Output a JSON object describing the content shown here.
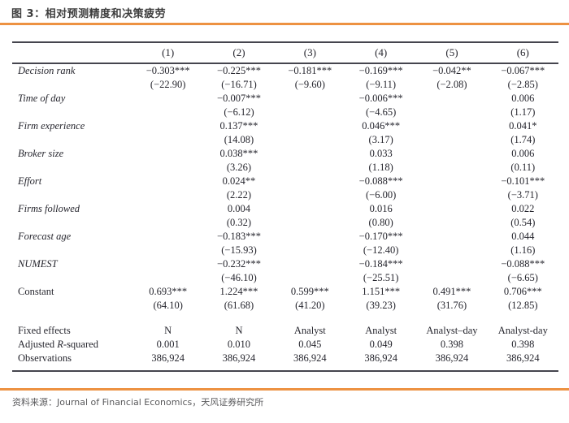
{
  "title": "图 3：相对预测精度和决策疲劳",
  "source": {
    "prefix": "资料来源：",
    "text": "Journal of Financial Economics，天风证券研究所"
  },
  "colors": {
    "accent_orange": "#ED9242",
    "rule_dark": "#45454e",
    "table_text": "#26262e",
    "muted_gray": "#5a5a5c"
  },
  "table": {
    "column_headers": [
      "(1)",
      "(2)",
      "(3)",
      "(4)",
      "(5)",
      "(6)"
    ],
    "rows": [
      {
        "label": "Decision rank",
        "italic": true,
        "coef": [
          "−0.303***",
          "−0.225***",
          "−0.181***",
          "−0.169***",
          "−0.042**",
          "−0.067***"
        ],
        "tstat": [
          "(−22.90)",
          "(−16.71)",
          "(−9.60)",
          "(−9.11)",
          "(−2.08)",
          "(−2.85)"
        ]
      },
      {
        "label": "Time of day",
        "italic": true,
        "coef": [
          "",
          "−0.007***",
          "",
          "−0.006***",
          "",
          "0.006"
        ],
        "tstat": [
          "",
          "(−6.12)",
          "",
          "(−4.65)",
          "",
          "(1.17)"
        ]
      },
      {
        "label": "Firm experience",
        "italic": true,
        "coef": [
          "",
          "0.137***",
          "",
          "0.046***",
          "",
          "0.041*"
        ],
        "tstat": [
          "",
          "(14.08)",
          "",
          "(3.17)",
          "",
          "(1.74)"
        ]
      },
      {
        "label": "Broker size",
        "italic": true,
        "coef": [
          "",
          "0.038***",
          "",
          "0.033",
          "",
          "0.006"
        ],
        "tstat": [
          "",
          "(3.26)",
          "",
          "(1.18)",
          "",
          "(0.11)"
        ]
      },
      {
        "label": "Effort",
        "italic": true,
        "coef": [
          "",
          "0.024**",
          "",
          "−0.088***",
          "",
          "−0.101***"
        ],
        "tstat": [
          "",
          "(2.22)",
          "",
          "(−6.00)",
          "",
          "(−3.71)"
        ]
      },
      {
        "label": "Firms followed",
        "italic": true,
        "coef": [
          "",
          "0.004",
          "",
          "0.016",
          "",
          "0.022"
        ],
        "tstat": [
          "",
          "(0.32)",
          "",
          "(0.80)",
          "",
          "(0.54)"
        ]
      },
      {
        "label": "Forecast age",
        "italic": true,
        "coef": [
          "",
          "−0.183***",
          "",
          "−0.170***",
          "",
          "0.044"
        ],
        "tstat": [
          "",
          "(−15.93)",
          "",
          "(−12.40)",
          "",
          "(1.16)"
        ]
      },
      {
        "label": "NUMEST",
        "italic": true,
        "coef": [
          "",
          "−0.232***",
          "",
          "−0.184***",
          "",
          "−0.088***"
        ],
        "tstat": [
          "",
          "(−46.10)",
          "",
          "(−25.51)",
          "",
          "(−6.65)"
        ]
      },
      {
        "label": "Constant",
        "italic": false,
        "coef": [
          "0.693***",
          "1.224***",
          "0.599***",
          "1.151***",
          "0.491***",
          "0.706***"
        ],
        "tstat": [
          "(64.10)",
          "(61.68)",
          "(41.20)",
          "(39.23)",
          "(31.76)",
          "(12.85)"
        ]
      }
    ],
    "footer_rows": [
      {
        "label": "Fixed effects",
        "values": [
          "N",
          "N",
          "Analyst",
          "Analyst",
          "Analyst–day",
          "Analyst-day"
        ]
      },
      {
        "label": "Adjusted R-squared",
        "label_parts": {
          "pre": "Adjusted ",
          "italic": "R",
          "post": "-squared"
        },
        "values": [
          "0.001",
          "0.010",
          "0.045",
          "0.049",
          "0.398",
          "0.398"
        ]
      },
      {
        "label": "Observations",
        "values": [
          "386,924",
          "386,924",
          "386,924",
          "386,924",
          "386,924",
          "386,924"
        ]
      }
    ]
  }
}
